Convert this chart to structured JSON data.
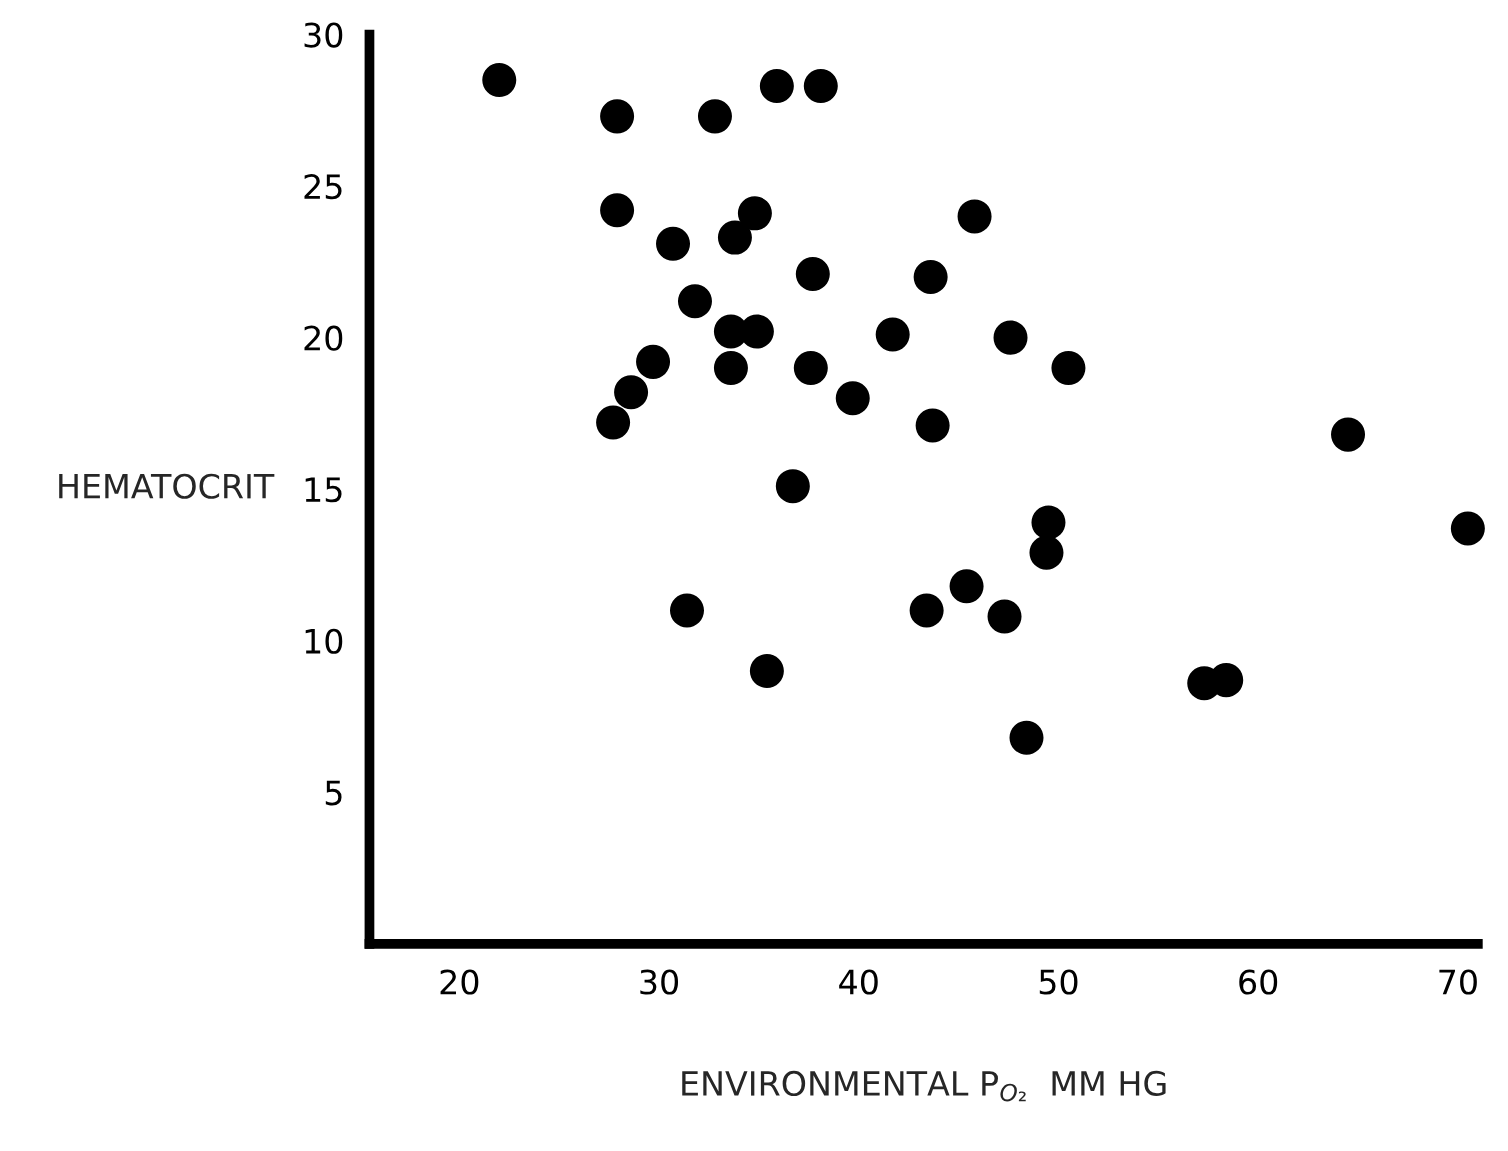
{
  "chart_data": {
    "type": "scatter",
    "xlabel": "ENVIRONMENTAL P$_{O₂}$  MM HG",
    "ylabel": "HEMATOCRIT",
    "x": [
      22.0,
      27.9,
      32.8,
      35.9,
      38.1,
      27.9,
      34.8,
      45.8,
      30.7,
      33.8,
      37.7,
      43.6,
      31.8,
      33.6,
      34.9,
      41.7,
      47.6,
      29.7,
      33.6,
      37.6,
      50.5,
      28.6,
      39.7,
      27.7,
      43.7,
      64.5,
      36.7,
      49.5,
      70.5,
      49.4,
      45.4,
      31.4,
      43.4,
      47.3,
      35.4,
      57.3,
      58.4,
      48.4
    ],
    "series": [
      {
        "color": "#000000",
        "values": [
          28.5,
          27.3,
          27.3,
          28.3,
          28.3,
          24.2,
          24.1,
          24.0,
          23.1,
          23.3,
          22.1,
          22.0,
          21.2,
          20.2,
          20.2,
          20.1,
          20.0,
          19.2,
          19.0,
          19.0,
          19.0,
          18.2,
          18.0,
          17.2,
          17.1,
          16.8,
          15.1,
          13.9,
          13.7,
          12.9,
          11.8,
          11.0,
          11.0,
          10.8,
          9.0,
          8.6,
          8.7,
          6.8
        ]
      }
    ],
    "xlim": [
      15.5,
      71
    ],
    "ylim": [
      0,
      30
    ],
    "xticks": [
      20,
      30,
      40,
      50,
      60,
      70
    ],
    "yticks": [
      5,
      10,
      15,
      20,
      25,
      30
    ],
    "marker": "circle",
    "grid": false,
    "legend": false
  }
}
